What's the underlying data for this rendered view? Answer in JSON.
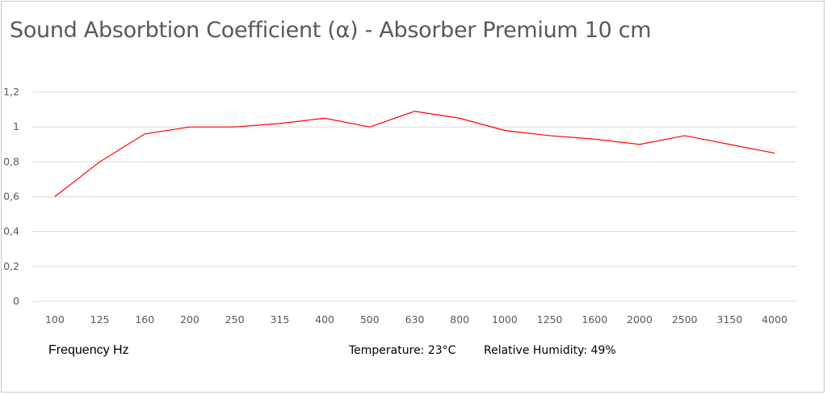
{
  "chart_data": {
    "type": "line",
    "title": "Sound Absorbtion Coefficient (α) - Absorber Premium 10 cm",
    "xlabel": "Frequency Hz",
    "ylabel": "",
    "categories": [
      "100",
      "125",
      "160",
      "200",
      "250",
      "315",
      "400",
      "500",
      "630",
      "800",
      "1000",
      "1250",
      "1600",
      "2000",
      "2500",
      "3150",
      "4000"
    ],
    "series": [
      {
        "name": "Absorber Premium 10 cm",
        "color": "#ff0000",
        "values": [
          0.6,
          0.8,
          0.96,
          1.0,
          1.0,
          1.02,
          1.05,
          1.0,
          1.09,
          1.05,
          0.98,
          0.95,
          0.93,
          0.9,
          0.95,
          0.9,
          0.85
        ]
      }
    ],
    "ylim": [
      0,
      1.2
    ],
    "yticks": [
      0,
      0.2,
      0.4,
      0.6,
      0.8,
      1,
      1.2
    ],
    "ytick_labels": [
      "0",
      "0,2",
      "0,4",
      "0,6",
      "0,8",
      "1",
      "1,2"
    ],
    "grid": true,
    "legend": "none",
    "annotations": {
      "temperature": "Temperature: 23°C",
      "humidity": "Relative Humidity: 49%"
    }
  }
}
